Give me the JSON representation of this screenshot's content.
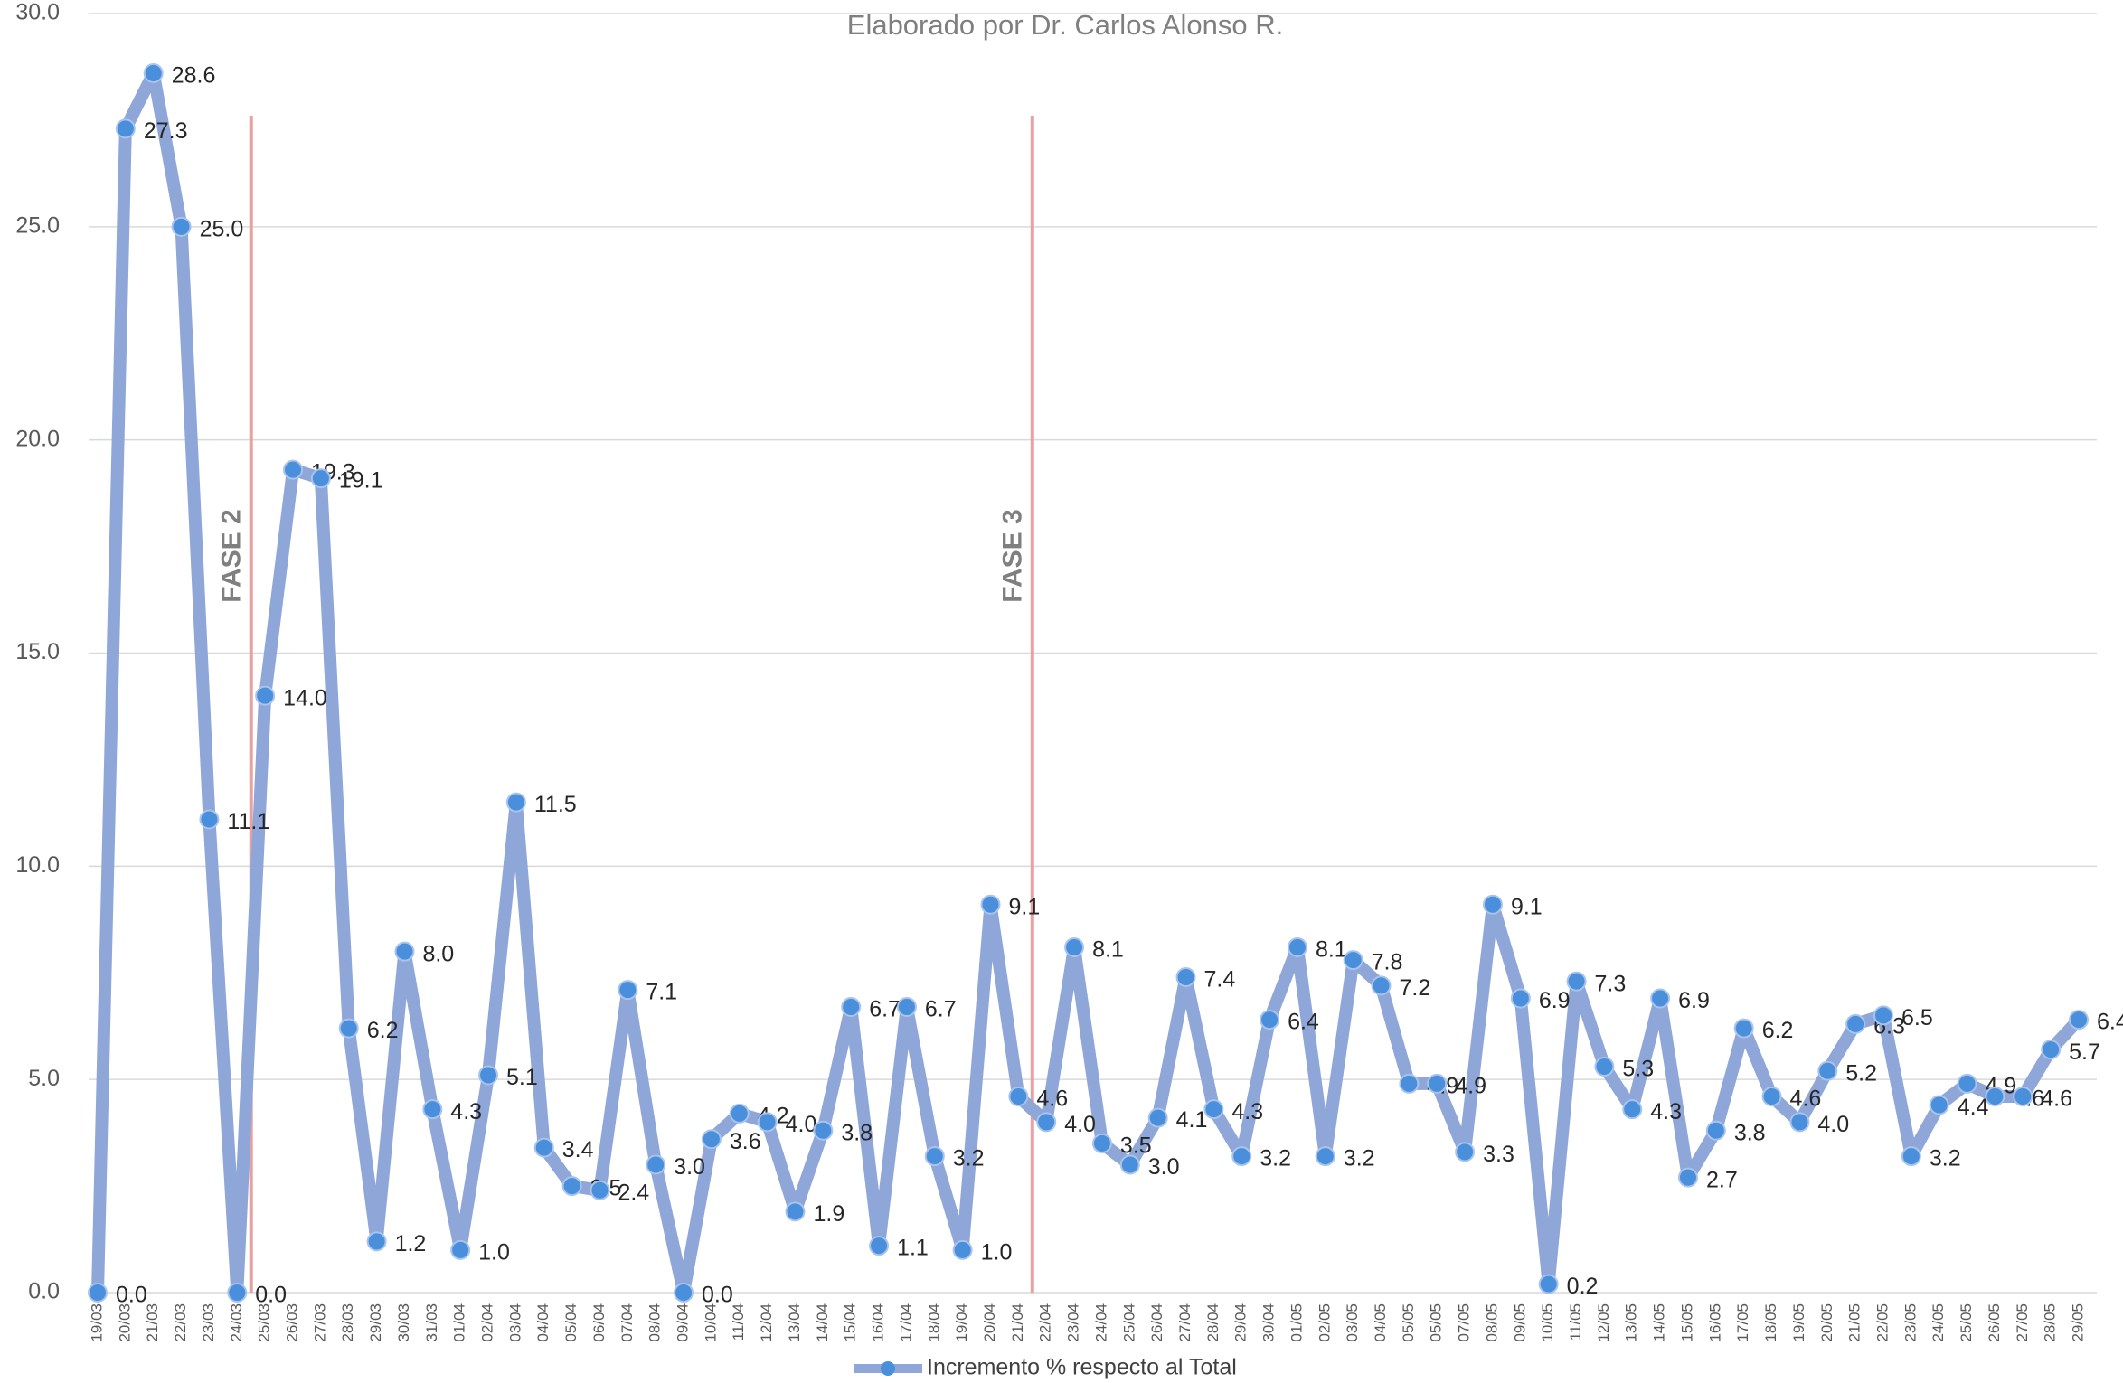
{
  "chart_data": {
    "type": "line",
    "subtitle": "Elaborado por Dr. Carlos Alonso R.",
    "categories": [
      "19/03",
      "20/03",
      "21/03",
      "22/03",
      "23/03",
      "24/03",
      "25/03",
      "26/03",
      "27/03",
      "28/03",
      "29/03",
      "30/03",
      "31/03",
      "01/04",
      "02/04",
      "03/04",
      "04/04",
      "05/04",
      "06/04",
      "07/04",
      "08/04",
      "09/04",
      "10/04",
      "11/04",
      "12/04",
      "13/04",
      "14/04",
      "15/04",
      "16/04",
      "17/04",
      "18/04",
      "19/04",
      "20/04",
      "21/04",
      "22/04",
      "23/04",
      "24/04",
      "25/04",
      "26/04",
      "27/04",
      "28/04",
      "29/04",
      "30/04",
      "01/05",
      "02/05",
      "03/05",
      "04/05",
      "05/05",
      "05/05",
      "07/05",
      "08/05",
      "09/05",
      "10/05",
      "11/05",
      "12/05",
      "13/05",
      "14/05",
      "15/05",
      "16/05",
      "17/05",
      "18/05",
      "19/05",
      "20/05",
      "21/05",
      "22/05",
      "23/05",
      "24/05",
      "25/05",
      "26/05",
      "27/05",
      "28/05",
      "29/05"
    ],
    "series": [
      {
        "name": "Incremento % respecto al Total",
        "color": "#8ea6d8",
        "marker_color": "#4a8fdc",
        "values": [
          0.0,
          27.3,
          28.6,
          25.0,
          11.1,
          0.0,
          14.0,
          19.3,
          19.1,
          6.2,
          1.2,
          8.0,
          4.3,
          1.0,
          5.1,
          11.5,
          3.4,
          2.5,
          2.4,
          7.1,
          3.0,
          0.0,
          3.6,
          4.2,
          4.0,
          1.9,
          3.8,
          6.7,
          1.1,
          6.7,
          3.2,
          1.0,
          9.1,
          4.6,
          4.0,
          8.1,
          3.5,
          3.0,
          4.1,
          7.4,
          4.3,
          3.2,
          6.4,
          8.1,
          3.2,
          7.8,
          7.2,
          4.9,
          4.9,
          3.3,
          9.1,
          6.9,
          0.2,
          7.3,
          5.3,
          4.3,
          6.9,
          2.7,
          3.8,
          6.2,
          4.6,
          4.0,
          5.2,
          6.3,
          6.5,
          3.2,
          4.4,
          4.9,
          4.6,
          4.6,
          5.7,
          6.4
        ],
        "value_labels": [
          "0.0",
          "27.3",
          "28.6",
          "25.0",
          "11.1",
          "0.0",
          "14.0",
          "19.3",
          "19.1",
          "6.2",
          "1.2",
          "8.0",
          "4.3",
          "1.0",
          "5.1",
          "11.5",
          "3.4",
          "2.5",
          "2.4",
          "7.1",
          "3.0",
          "0.0",
          "3.6",
          "4.2",
          "4.0",
          "1.9",
          "3.8",
          "6.7",
          "1.1",
          "6.7",
          "3.2",
          "1.0",
          "9.1",
          "4.6",
          "4.0",
          "8.1",
          "3.5",
          "3.0",
          "4.1",
          "7.4",
          "4.3",
          "3.2",
          "6.4",
          "8.1",
          "3.2",
          "7.8",
          "7.2",
          "4.9",
          "4.9",
          "3.3",
          "9.1",
          "6.9",
          "0.2",
          "7.3",
          "5.3",
          "4.3",
          "6.9",
          "2.7",
          "3.8",
          "6.2",
          "4.6",
          "4.0",
          "5.2",
          "6.3",
          "6.5",
          "3.2",
          "4.4",
          "4.9",
          "4.6",
          "4.6",
          "5.7",
          "6.4"
        ]
      }
    ],
    "ylim": [
      0,
      30
    ],
    "yticks": [
      {
        "value": 0,
        "label": "0.0"
      },
      {
        "value": 5,
        "label": "5.0"
      },
      {
        "value": 10,
        "label": "10.0"
      },
      {
        "value": 15,
        "label": "15.0"
      },
      {
        "value": 20,
        "label": "20.0"
      },
      {
        "value": 25,
        "label": "25.0"
      },
      {
        "value": 30,
        "label": "30.0"
      }
    ],
    "grid": true,
    "legend": "bottom",
    "annotations": [
      {
        "text": "FASE 2",
        "category": "24/03",
        "color": "#e8a0a0"
      },
      {
        "text": "FASE 3",
        "category": "21/04",
        "color": "#e8a0a0"
      }
    ]
  }
}
